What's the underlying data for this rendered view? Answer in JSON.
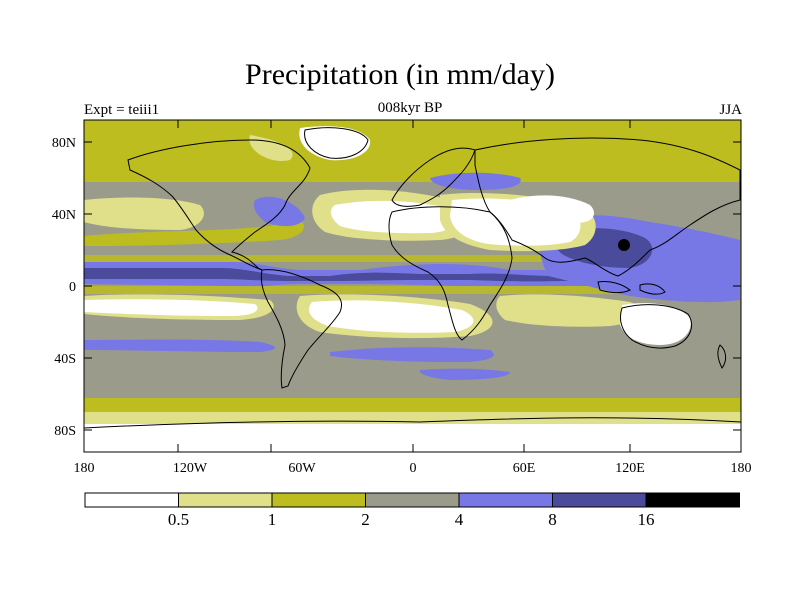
{
  "map": {
    "title": "Precipitation (in mm/day)",
    "left_label": "Expt = teiii1",
    "center_label": "008kyr BP",
    "right_label": "JJA",
    "lat_ticks": [
      "80N",
      "40N",
      "0",
      "40S",
      "80S"
    ],
    "lon_ticks": [
      "180",
      "120W",
      "60W",
      "0",
      "60E",
      "120E",
      "180"
    ]
  },
  "colorbar": {
    "levels": [
      "0.5",
      "1",
      "2",
      "4",
      "8",
      "16"
    ],
    "colors": [
      "#ffffff",
      "#e0e08a",
      "#bdbd20",
      "#9b9b8c",
      "#7777e6",
      "#4b4b9b",
      "#000000"
    ]
  }
}
